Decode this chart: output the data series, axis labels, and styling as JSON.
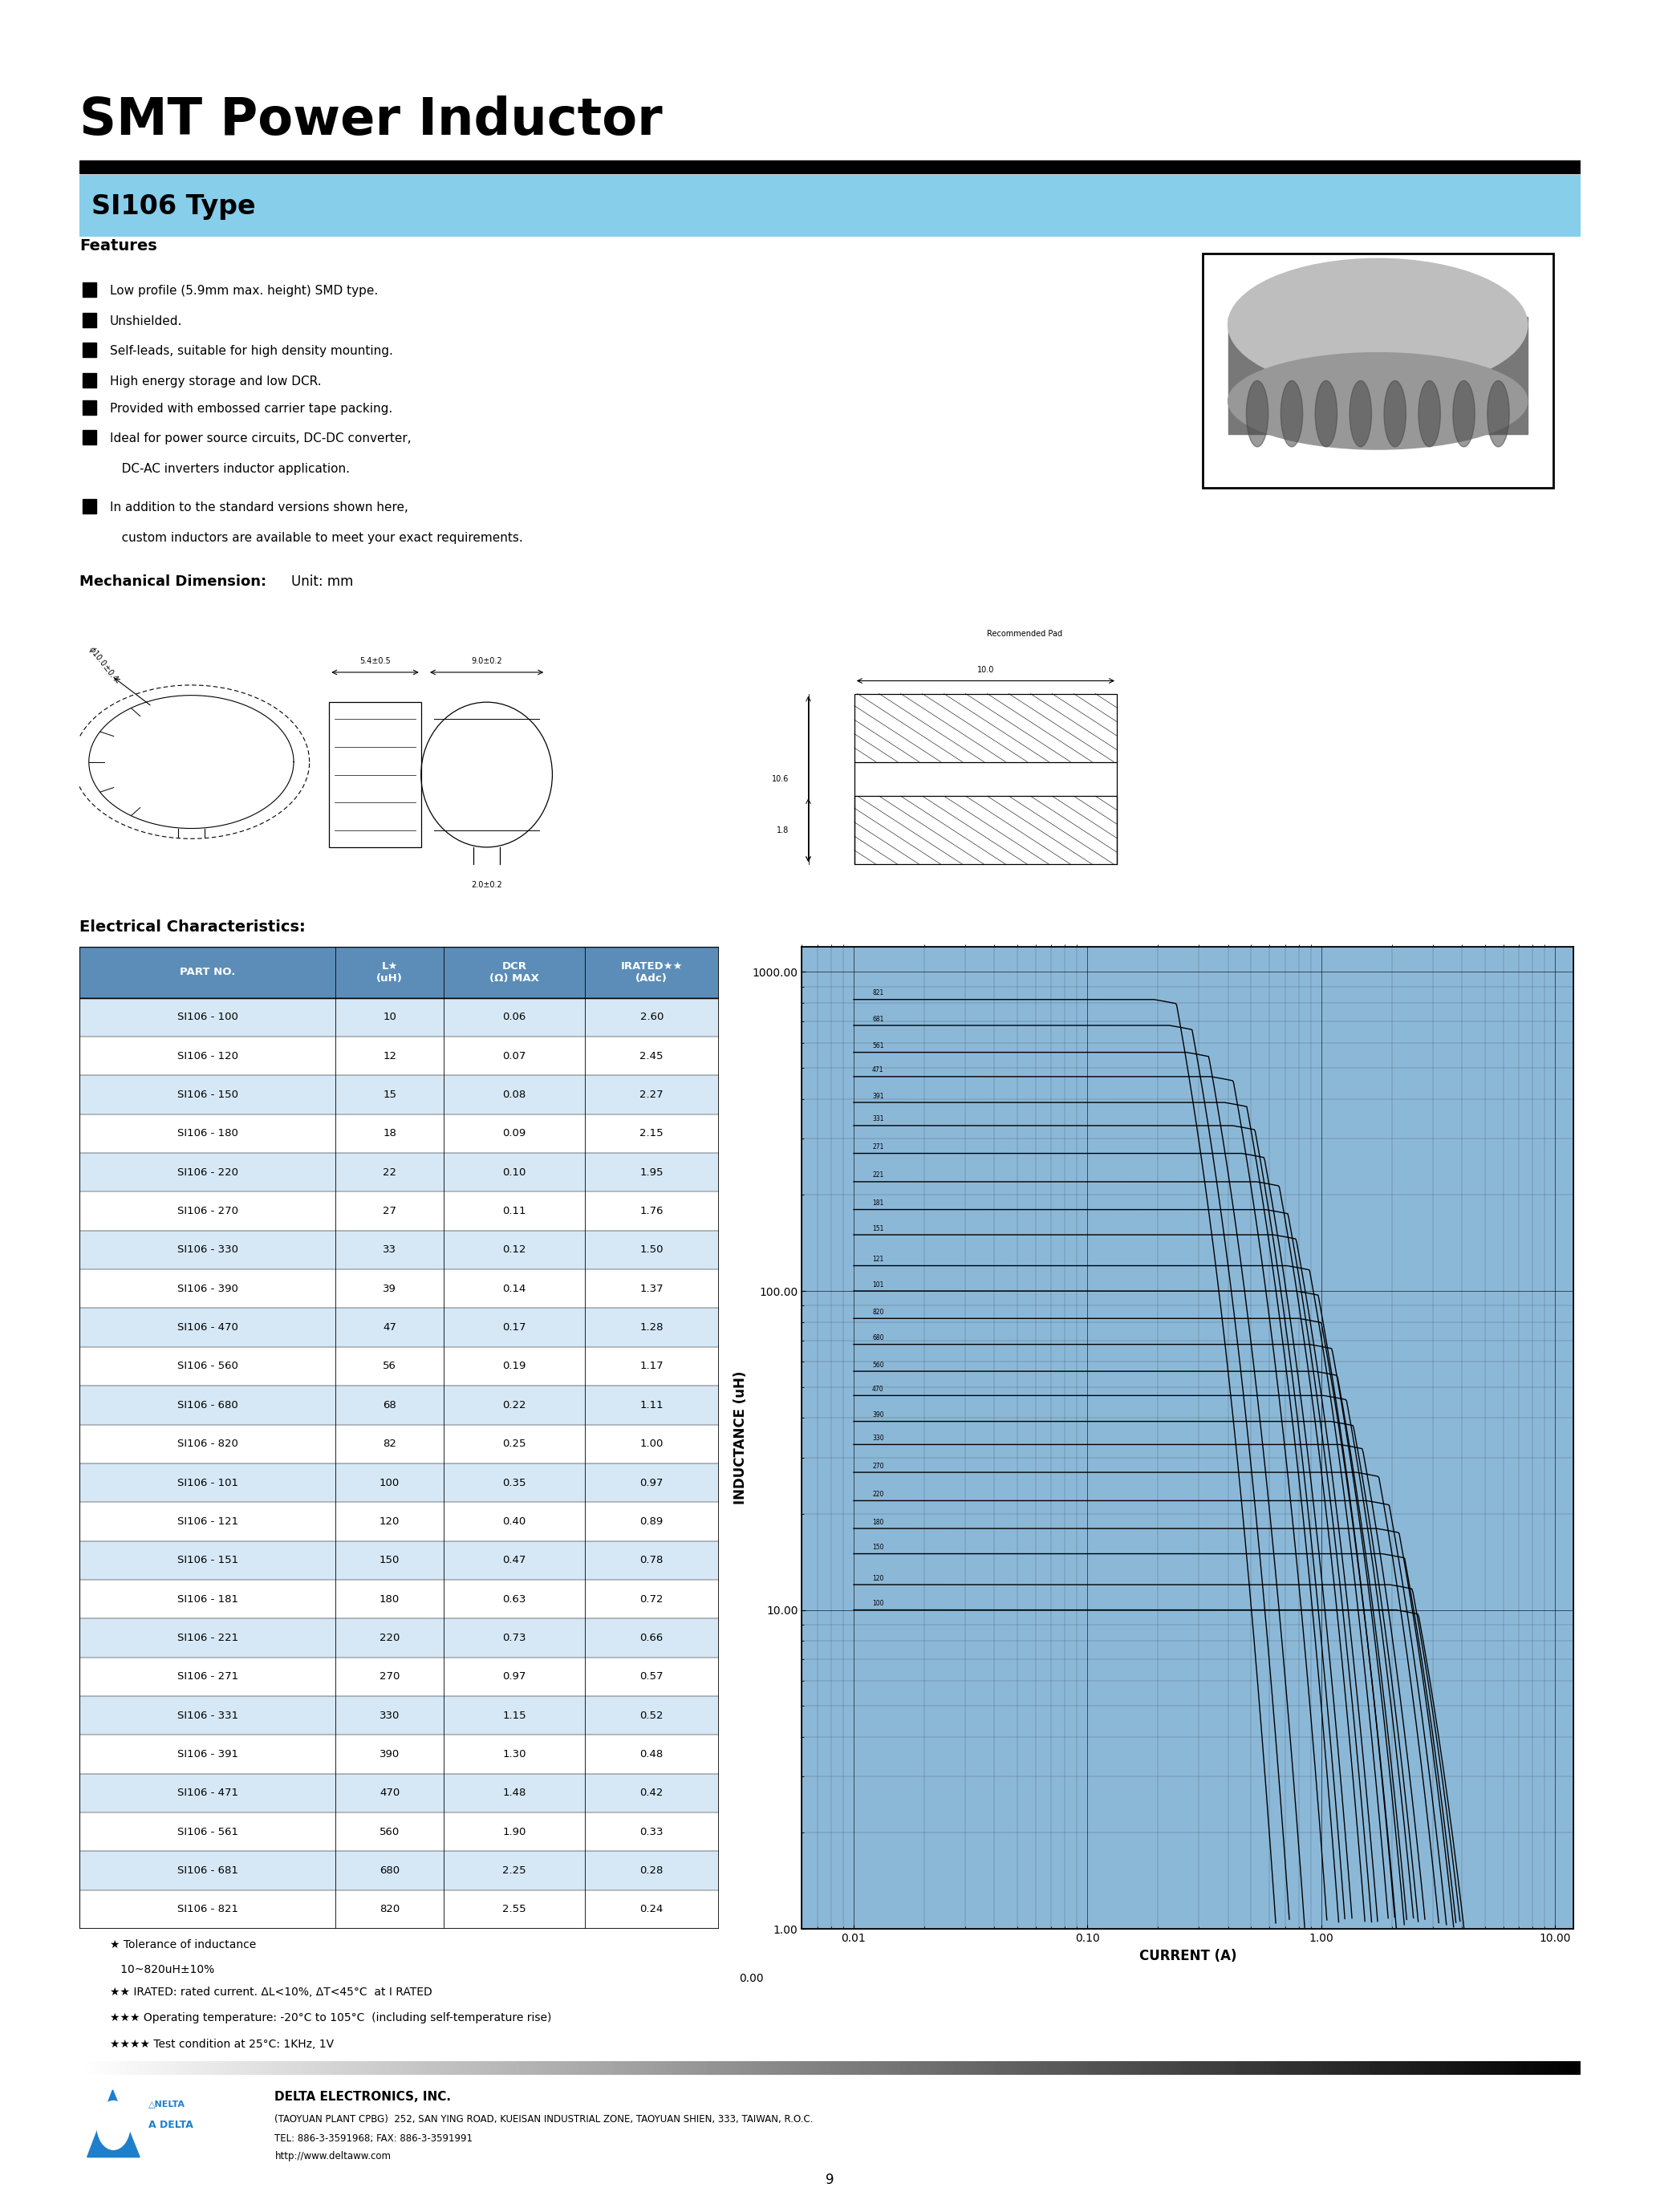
{
  "title": "SMT Power Inductor",
  "subtitle": "SI106 Type",
  "subtitle_bg": "#87CEEB",
  "features_title": "Features",
  "bullet_items": [
    [
      "Low profile (5.9mm max. height) SMD type.",
      true
    ],
    [
      "Unshielded.",
      true
    ],
    [
      "Self-leads, suitable for high density mounting.",
      true
    ],
    [
      "High energy storage and low DCR.",
      true
    ],
    [
      "Provided with embossed carrier tape packing.",
      true
    ],
    [
      "Ideal for power source circuits, DC-DC converter,",
      true
    ],
    [
      "   DC-AC inverters inductor application.",
      false
    ],
    [
      "In addition to the standard versions shown here,",
      true
    ],
    [
      "   custom inductors are available to meet your exact requirements.",
      false
    ]
  ],
  "mech_dim_bold": "Mechanical Dimension:",
  "mech_dim_normal": "Unit: mm",
  "elec_char_title": "Electrical Characteristics:",
  "table_header": [
    "PART NO.",
    "L★\n(uH)",
    "DCR\n(Ω) MAX",
    "IRATED★★\n(Adc)"
  ],
  "table_header_bg": "#5B8DB8",
  "table_row_alt_bg": "#D6E8F5",
  "table_data": [
    [
      "SI106 - 100",
      "10",
      "0.06",
      "2.60"
    ],
    [
      "SI106 - 120",
      "12",
      "0.07",
      "2.45"
    ],
    [
      "SI106 - 150",
      "15",
      "0.08",
      "2.27"
    ],
    [
      "SI106 - 180",
      "18",
      "0.09",
      "2.15"
    ],
    [
      "SI106 - 220",
      "22",
      "0.10",
      "1.95"
    ],
    [
      "SI106 - 270",
      "27",
      "0.11",
      "1.76"
    ],
    [
      "SI106 - 330",
      "33",
      "0.12",
      "1.50"
    ],
    [
      "SI106 - 390",
      "39",
      "0.14",
      "1.37"
    ],
    [
      "SI106 - 470",
      "47",
      "0.17",
      "1.28"
    ],
    [
      "SI106 - 560",
      "56",
      "0.19",
      "1.17"
    ],
    [
      "SI106 - 680",
      "68",
      "0.22",
      "1.11"
    ],
    [
      "SI106 - 820",
      "82",
      "0.25",
      "1.00"
    ],
    [
      "SI106 - 101",
      "100",
      "0.35",
      "0.97"
    ],
    [
      "SI106 - 121",
      "120",
      "0.40",
      "0.89"
    ],
    [
      "SI106 - 151",
      "150",
      "0.47",
      "0.78"
    ],
    [
      "SI106 - 181",
      "180",
      "0.63",
      "0.72"
    ],
    [
      "SI106 - 221",
      "220",
      "0.73",
      "0.66"
    ],
    [
      "SI106 - 271",
      "270",
      "0.97",
      "0.57"
    ],
    [
      "SI106 - 331",
      "330",
      "1.15",
      "0.52"
    ],
    [
      "SI106 - 391",
      "390",
      "1.30",
      "0.48"
    ],
    [
      "SI106 - 471",
      "470",
      "1.48",
      "0.42"
    ],
    [
      "SI106 - 561",
      "560",
      "1.90",
      "0.33"
    ],
    [
      "SI106 - 681",
      "680",
      "2.25",
      "0.28"
    ],
    [
      "SI106 - 821",
      "820",
      "2.55",
      "0.24"
    ]
  ],
  "fn1a": "★ Tolerance of inductance",
  "fn1b": "   10~820uH±10%",
  "fn2": "★★ IRATED: rated current. ΔL<10%, ΔT<45°C  at I RATED",
  "fn3": "★★★ Operating temperature: -20°C to 105°C  (including self-temperature rise)",
  "fn4": "★★★★ Test condition at 25°C: 1KHz, 1V",
  "company_name": "DELTA ELECTRONICS, INC.",
  "company_addr1": "(TAOYUAN PLANT CPBG)  252, SAN YING ROAD, KUEISAN INDUSTRIAL ZONE, TAOYUAN SHIEN, 333, TAIWAN, R.O.C.",
  "company_addr2": "TEL: 886-3-3591968; FAX: 886-3-3591991",
  "company_addr3": "http://www.deltaww.com",
  "page_num": "9",
  "graph_bg": "#8CB8D8",
  "graph_xlabel": "CURRENT (A)",
  "graph_ylabel": "INDUCTANCE (uH)",
  "curve_labels": [
    "821",
    "681",
    "561",
    "471",
    "391",
    "331",
    "271",
    "221",
    "181",
    "151",
    "121",
    "101",
    "820",
    "680",
    "560",
    "470",
    "390",
    "330",
    "270",
    "220",
    "180",
    "150",
    "120",
    "100"
  ],
  "inductance_values": [
    820,
    680,
    560,
    470,
    390,
    330,
    270,
    220,
    180,
    150,
    120,
    100,
    82,
    68,
    56,
    47,
    39,
    33,
    27,
    22,
    18,
    15,
    12,
    10
  ],
  "rated_currents": [
    0.24,
    0.28,
    0.33,
    0.42,
    0.48,
    0.52,
    0.57,
    0.66,
    0.72,
    0.78,
    0.89,
    0.97,
    1.0,
    1.11,
    1.17,
    1.28,
    1.37,
    1.5,
    1.76,
    1.95,
    2.15,
    2.27,
    2.45,
    2.6
  ],
  "rec_pad_text": "Recommended Pad"
}
